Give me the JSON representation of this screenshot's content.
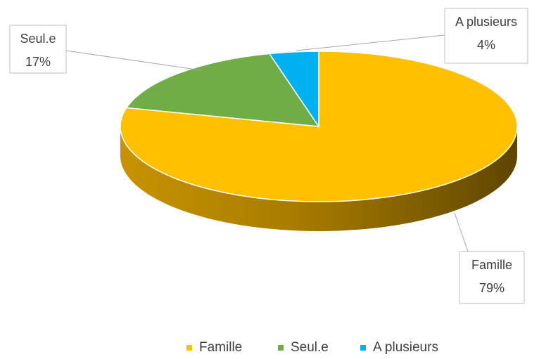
{
  "chart_data": {
    "type": "pie",
    "style": "3d",
    "slices": [
      {
        "label": "Famille",
        "value": 79,
        "display": "79%",
        "color": "#FFC000"
      },
      {
        "label": "Seul.e",
        "value": 17,
        "display": "17%",
        "color": "#70AD47"
      },
      {
        "label": "A plusieurs",
        "value": 4,
        "display": "4%",
        "color": "#00B0F0"
      }
    ],
    "legend": {
      "placement": "bottom",
      "items": [
        "Famille",
        "Seul.e",
        "A plusieurs"
      ]
    }
  }
}
